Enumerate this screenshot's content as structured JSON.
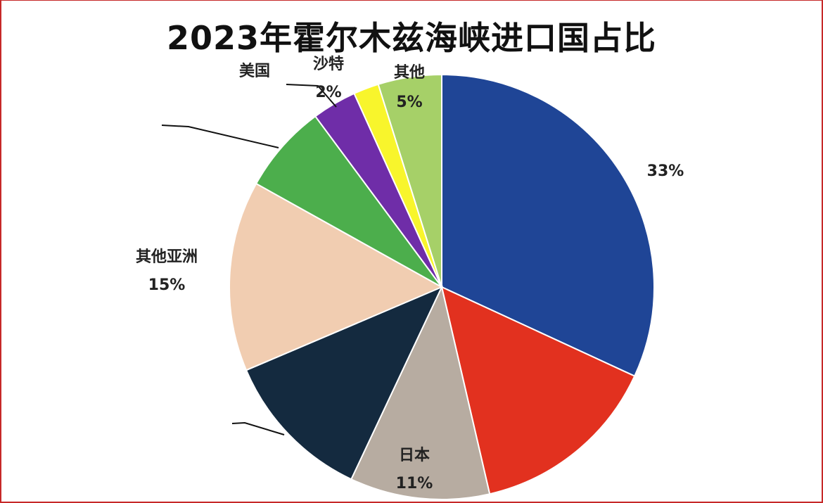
{
  "chart_data": {
    "type": "pie",
    "title": "2023年霍尔木兹海峡进口国占比",
    "start_angle_deg": 0,
    "direction": "clockwise",
    "slices": [
      {
        "label": "",
        "value": 33,
        "value_label": "33%",
        "color": "#1f4596"
      },
      {
        "label": "",
        "value": 15,
        "value_label": "",
        "color": "#e2311f"
      },
      {
        "label": "日本",
        "value": 11,
        "value_label": "11%",
        "color": "#b7aca1"
      },
      {
        "label": "",
        "value": 12,
        "value_label": "",
        "color": "#142a3f"
      },
      {
        "label": "其他亚洲",
        "value": 15,
        "value_label": "15%",
        "color": "#f1cdb1"
      },
      {
        "label": "",
        "value": 7,
        "value_label": "",
        "color": "#4cae4c"
      },
      {
        "label": "美国",
        "value": 3.5,
        "value_label": "",
        "color": "#6f2da8"
      },
      {
        "label": "沙特",
        "value": 2,
        "value_label": "2%",
        "color": "#f8f52c"
      },
      {
        "label": "其他",
        "value": 5,
        "value_label": "5%",
        "color": "#a6d068"
      }
    ]
  }
}
